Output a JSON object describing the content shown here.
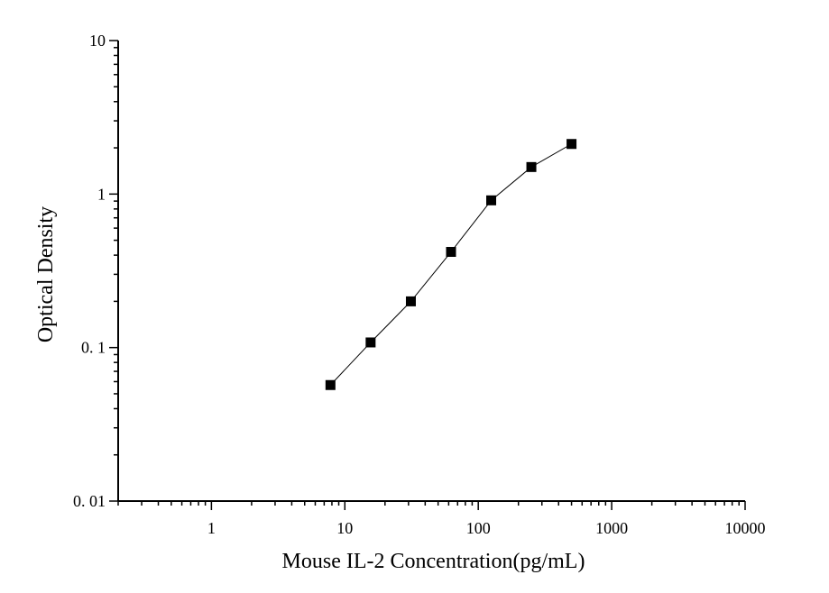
{
  "chart_data": {
    "type": "scatter",
    "title": "",
    "xlabel": "Mouse IL-2 Concentration(pg/mL)",
    "ylabel": "Optical Density",
    "xscale": "log",
    "yscale": "log",
    "xlim": [
      0.2,
      10000
    ],
    "ylim": [
      0.01,
      10
    ],
    "x_tick_labels": [
      {
        "value": 1,
        "label": "1"
      },
      {
        "value": 10,
        "label": "10"
      },
      {
        "value": 100,
        "label": "100"
      },
      {
        "value": 1000,
        "label": "1000"
      },
      {
        "value": 10000,
        "label": "10000"
      }
    ],
    "y_tick_labels": [
      {
        "value": 0.01,
        "label": "0. 01"
      },
      {
        "value": 0.1,
        "label": "0. 1"
      },
      {
        "value": 1,
        "label": "1"
      },
      {
        "value": 10,
        "label": "10"
      }
    ],
    "grid": false,
    "legend": "none",
    "series": [
      {
        "marker": "square",
        "line": "connected",
        "color": "#000000",
        "points": [
          {
            "x": 7.8,
            "y": 0.057
          },
          {
            "x": 15.6,
            "y": 0.108
          },
          {
            "x": 31.25,
            "y": 0.2
          },
          {
            "x": 62.5,
            "y": 0.42
          },
          {
            "x": 125,
            "y": 0.91
          },
          {
            "x": 250,
            "y": 1.5
          },
          {
            "x": 500,
            "y": 2.12
          }
        ]
      }
    ]
  }
}
